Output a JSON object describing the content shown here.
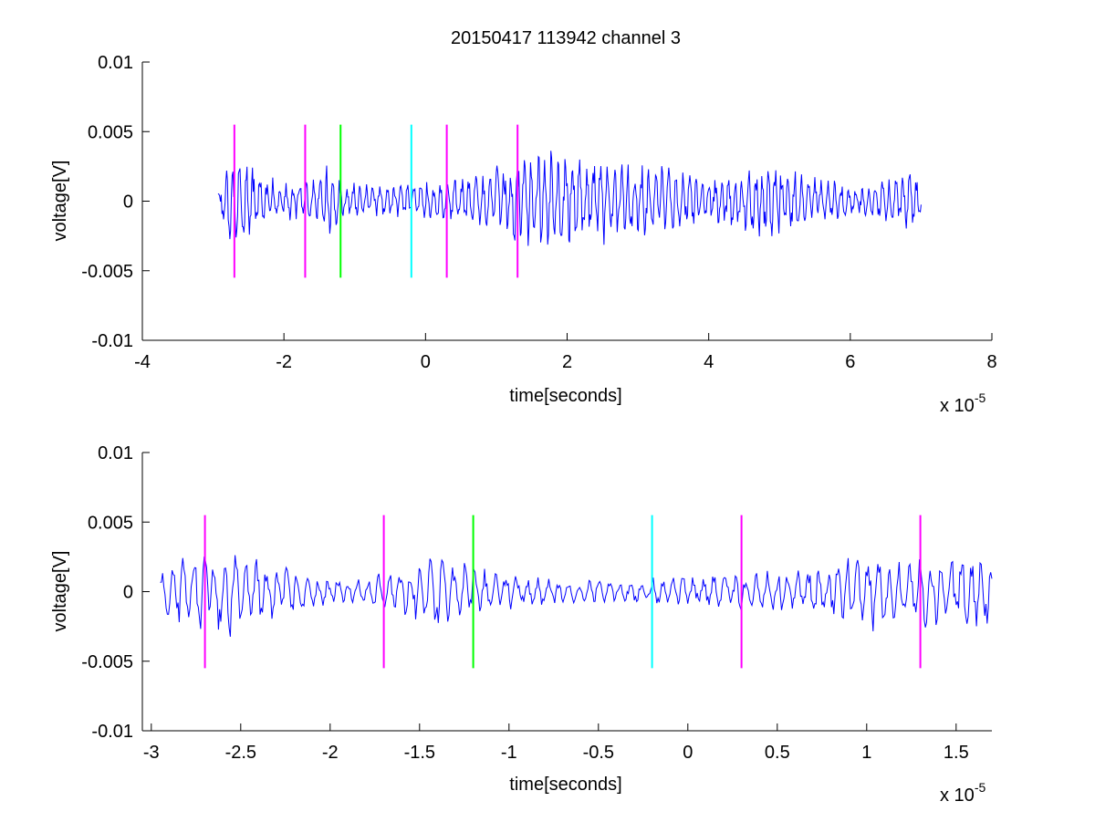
{
  "figure_title": "20150417 113942 channel 3",
  "chart_data": [
    {
      "type": "line",
      "title": "20150417 113942 channel 3",
      "xlabel": "time[seconds]",
      "ylabel": "voltage[V]",
      "x_exponent_label": "x 10",
      "x_exponent": "-5",
      "xlim": [
        -4,
        8
      ],
      "ylim": [
        -0.01,
        0.01
      ],
      "x_ticks": [
        "-4",
        "-2",
        "0",
        "2",
        "4",
        "6",
        "8"
      ],
      "x_tick_values": [
        -4,
        -2,
        0,
        2,
        4,
        6,
        8
      ],
      "y_ticks": [
        "0.01",
        "0.005",
        "0",
        "-0.005",
        "-0.01"
      ],
      "y_tick_values": [
        0.01,
        0.005,
        0,
        -0.005,
        -0.01
      ],
      "grid": false,
      "series": [
        {
          "color": "#0000ff",
          "x_range": [
            -2.93,
            7.0
          ],
          "amplitude_envelope": [
            [
              -2.93,
              0.0015
            ],
            [
              -2.7,
              0.0035
            ],
            [
              -2.4,
              0.0025
            ],
            [
              -2.0,
              0.0015
            ],
            [
              -1.6,
              0.0015
            ],
            [
              -1.4,
              0.003
            ],
            [
              -1.2,
              0.0015
            ],
            [
              -0.6,
              0.0012
            ],
            [
              0.0,
              0.0015
            ],
            [
              0.8,
              0.002
            ],
            [
              1.2,
              0.0035
            ],
            [
              1.8,
              0.004
            ],
            [
              2.2,
              0.0035
            ],
            [
              3.0,
              0.0028
            ],
            [
              3.5,
              0.0025
            ],
            [
              4.0,
              0.0015
            ],
            [
              4.5,
              0.0025
            ],
            [
              5.0,
              0.0028
            ],
            [
              5.5,
              0.0018
            ],
            [
              6.0,
              0.0012
            ],
            [
              6.5,
              0.0015
            ],
            [
              7.0,
              0.0025
            ]
          ]
        }
      ],
      "markers": [
        {
          "x": -2.7,
          "color": "#ff00ff",
          "y_from": -0.0055,
          "y_to": 0.0055
        },
        {
          "x": -1.7,
          "color": "#ff00ff",
          "y_from": -0.0055,
          "y_to": 0.0055
        },
        {
          "x": -1.2,
          "color": "#00ff00",
          "y_from": -0.0055,
          "y_to": 0.0055
        },
        {
          "x": -0.2,
          "color": "#00ffff",
          "y_from": -0.0055,
          "y_to": 0.0055
        },
        {
          "x": 0.3,
          "color": "#ff00ff",
          "y_from": -0.0055,
          "y_to": 0.0055
        },
        {
          "x": 1.3,
          "color": "#ff00ff",
          "y_from": -0.0055,
          "y_to": 0.0055
        }
      ]
    },
    {
      "type": "line",
      "title": "",
      "xlabel": "time[seconds]",
      "ylabel": "voltage[V]",
      "x_exponent_label": "x 10",
      "x_exponent": "-5",
      "xlim": [
        -3.05,
        1.7
      ],
      "ylim": [
        -0.01,
        0.01
      ],
      "x_ticks": [
        "-3",
        "-2.5",
        "-2",
        "-1.5",
        "-1",
        "-0.5",
        "0",
        "0.5",
        "1",
        "1.5"
      ],
      "x_tick_values": [
        -3,
        -2.5,
        -2,
        -1.5,
        -1,
        -0.5,
        0,
        0.5,
        1,
        1.5
      ],
      "y_ticks": [
        "0.01",
        "0.005",
        "0",
        "-0.005",
        "-0.01"
      ],
      "y_tick_values": [
        0.01,
        0.005,
        0,
        -0.005,
        -0.01
      ],
      "grid": false,
      "series": [
        {
          "color": "#0000ff",
          "x_range": [
            -2.95,
            1.7
          ],
          "amplitude_envelope": [
            [
              -2.95,
              0.0015
            ],
            [
              -2.8,
              0.003
            ],
            [
              -2.6,
              0.0035
            ],
            [
              -2.4,
              0.0025
            ],
            [
              -2.2,
              0.0018
            ],
            [
              -2.0,
              0.001
            ],
            [
              -1.8,
              0.0012
            ],
            [
              -1.6,
              0.0018
            ],
            [
              -1.4,
              0.003
            ],
            [
              -1.3,
              0.0025
            ],
            [
              -1.1,
              0.0015
            ],
            [
              -0.8,
              0.001
            ],
            [
              -0.4,
              0.0008
            ],
            [
              0.0,
              0.0012
            ],
            [
              0.4,
              0.0015
            ],
            [
              0.8,
              0.002
            ],
            [
              1.0,
              0.0035
            ],
            [
              1.2,
              0.0025
            ],
            [
              1.4,
              0.003
            ],
            [
              1.7,
              0.0025
            ]
          ]
        }
      ],
      "markers": [
        {
          "x": -2.7,
          "color": "#ff00ff",
          "y_from": -0.0055,
          "y_to": 0.0055
        },
        {
          "x": -1.7,
          "color": "#ff00ff",
          "y_from": -0.0055,
          "y_to": 0.0055
        },
        {
          "x": -1.2,
          "color": "#00ff00",
          "y_from": -0.0055,
          "y_to": 0.0055
        },
        {
          "x": -0.2,
          "color": "#00ffff",
          "y_from": -0.0055,
          "y_to": 0.0055
        },
        {
          "x": 0.3,
          "color": "#ff00ff",
          "y_from": -0.0055,
          "y_to": 0.0055
        },
        {
          "x": 1.3,
          "color": "#ff00ff",
          "y_from": -0.0055,
          "y_to": 0.0055
        }
      ]
    }
  ]
}
